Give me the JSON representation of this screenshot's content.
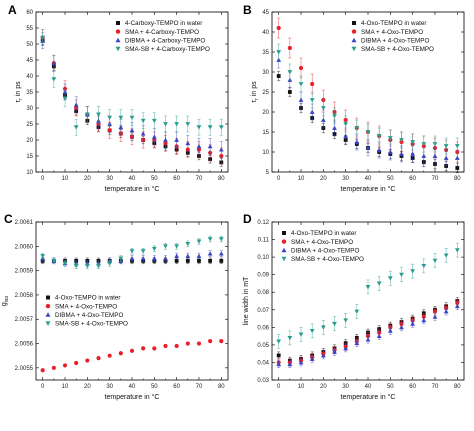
{
  "colors": {
    "water": "#111111",
    "sma": "#e8202a",
    "dibma": "#3a44c2",
    "smasb": "#2a9d8f"
  },
  "chart_data": [
    {
      "id": "A",
      "letter": "A",
      "type": "scatter",
      "xlabel": "temperature in °C",
      "ylabel": "τr in ps",
      "ylabel_main": "τ",
      "ylabel_sub": "r",
      "ylabel_rest": " in ps",
      "xlim": [
        -3,
        83
      ],
      "ylim": [
        10,
        60
      ],
      "xticks": [
        0,
        10,
        20,
        30,
        40,
        50,
        60,
        70,
        80
      ],
      "yticks": [
        10,
        15,
        20,
        25,
        30,
        35,
        40,
        45,
        50,
        55,
        60
      ],
      "ytick_decimals": 0,
      "legend_position": "top-right",
      "x": [
        0,
        5,
        10,
        15,
        20,
        25,
        30,
        35,
        40,
        45,
        50,
        55,
        60,
        65,
        70,
        75,
        80
      ],
      "series": [
        {
          "name": "4-Carboxy-TEMPO in water",
          "marker": "square",
          "color_key": "water",
          "values": [
            51,
            43,
            34,
            29,
            26,
            24,
            23,
            22,
            21,
            20,
            19,
            18,
            17,
            16,
            15,
            14,
            13
          ],
          "err": 1.2
        },
        {
          "name": "SMA + 4-Carboxy-TEMPO",
          "marker": "circle",
          "color_key": "sma",
          "values": [
            52,
            44,
            36,
            30,
            28,
            25,
            23,
            22,
            21,
            20,
            20,
            19,
            18,
            17,
            17,
            16,
            15
          ],
          "err": 2.5
        },
        {
          "name": "DIBMA + 4-Carboxy-TEMPO",
          "marker": "triangle-up",
          "color_key": "dibma",
          "values": [
            51,
            44,
            35,
            31,
            28,
            26,
            25,
            24,
            23,
            22,
            21,
            20,
            20,
            19,
            18,
            18,
            17
          ],
          "err": 2.5
        },
        {
          "name": "SMA-SB + 4-Carboxy-TEMPO",
          "marker": "triangle-down",
          "color_key": "smasb",
          "values": [
            52,
            39,
            33,
            24,
            28,
            28,
            27,
            27,
            27,
            26,
            26,
            25,
            25,
            25,
            24,
            24,
            24
          ],
          "err": 2.5
        }
      ]
    },
    {
      "id": "B",
      "letter": "B",
      "type": "scatter",
      "xlabel": "temperature in °C",
      "ylabel": "τr in ps",
      "ylabel_main": "τ",
      "ylabel_sub": "r",
      "ylabel_rest": " in ps",
      "xlim": [
        -3,
        83
      ],
      "ylim": [
        5,
        45
      ],
      "xticks": [
        0,
        10,
        20,
        30,
        40,
        50,
        60,
        70,
        80
      ],
      "yticks": [
        5,
        10,
        15,
        20,
        25,
        30,
        35,
        40,
        45
      ],
      "ytick_decimals": 0,
      "legend_position": "top-right",
      "x": [
        0,
        5,
        10,
        15,
        20,
        25,
        30,
        35,
        40,
        45,
        50,
        55,
        60,
        65,
        70,
        75,
        80
      ],
      "series": [
        {
          "name": "4-Oxo-TEMPO in water",
          "marker": "square",
          "color_key": "water",
          "values": [
            29,
            25,
            21,
            18.5,
            16,
            14.5,
            13,
            12,
            11,
            10,
            9.5,
            9,
            8.5,
            7.5,
            7,
            6.5,
            6
          ],
          "err": 1.2
        },
        {
          "name": "SMA + 4-Oxo-TEMPO",
          "marker": "circle",
          "color_key": "sma",
          "values": [
            41,
            36,
            31,
            27,
            23,
            20,
            18,
            16,
            15,
            14,
            13,
            12.5,
            12,
            11.5,
            11,
            10.5,
            10
          ],
          "err": 2.5
        },
        {
          "name": "DIBMA + 4-Oxo-TEMPO",
          "marker": "triangle-up",
          "color_key": "dibma",
          "values": [
            33,
            28,
            23,
            20,
            18,
            16,
            14,
            12.5,
            11,
            10.5,
            10,
            9.5,
            9.5,
            9,
            9,
            8.5,
            8.5
          ],
          "err": 2
        },
        {
          "name": "SMA-SB + 4-Oxo-TEMPO",
          "marker": "triangle-down",
          "color_key": "smasb",
          "values": [
            35,
            30,
            27,
            23,
            21,
            19,
            17,
            16,
            15,
            14,
            13.5,
            13,
            12.5,
            12,
            12,
            11.5,
            11.5
          ],
          "err": 2
        }
      ]
    },
    {
      "id": "C",
      "letter": "C",
      "type": "scatter",
      "xlabel": "temperature in °C",
      "ylabel": "giso",
      "ylabel_main": "g",
      "ylabel_sub": "iso",
      "ylabel_rest": "",
      "xlim": [
        -3,
        83
      ],
      "ylim": [
        2.00545,
        2.0061
      ],
      "xticks": [
        0,
        10,
        20,
        30,
        40,
        50,
        60,
        70,
        80
      ],
      "yticks": [
        2.0055,
        2.0056,
        2.0057,
        2.0058,
        2.0059,
        2.006,
        2.0061
      ],
      "ytick_decimals": 4,
      "legend_position": "center-left",
      "x": [
        0,
        5,
        10,
        15,
        20,
        25,
        30,
        35,
        40,
        45,
        50,
        55,
        60,
        65,
        70,
        75,
        80
      ],
      "series": [
        {
          "name": "4-Oxo-TEMPO in water",
          "marker": "square",
          "color_key": "water",
          "values": [
            2.00594,
            2.00594,
            2.00594,
            2.00594,
            2.00594,
            2.00594,
            2.00594,
            2.00594,
            2.00594,
            2.00594,
            2.00594,
            2.00594,
            2.00594,
            2.00594,
            2.00594,
            2.00594,
            2.00594
          ],
          "err": 1.2e-05
        },
        {
          "name": "SMA + 4-Oxo-TEMPO",
          "marker": "circle",
          "color_key": "sma",
          "values": [
            2.00549,
            2.0055,
            2.00551,
            2.00552,
            2.00553,
            2.00554,
            2.00555,
            2.00556,
            2.00557,
            2.00558,
            2.00558,
            2.00559,
            2.00559,
            2.0056,
            2.0056,
            2.00561,
            2.00561
          ],
          "err": 5e-06
        },
        {
          "name": "DIBMA + 4-Oxo-TEMPO",
          "marker": "triangle-up",
          "color_key": "dibma",
          "values": [
            2.00595,
            2.00594,
            2.00593,
            2.00593,
            2.00593,
            2.00593,
            2.00594,
            2.00594,
            2.00595,
            2.00595,
            2.00595,
            2.00595,
            2.00596,
            2.00596,
            2.00596,
            2.00597,
            2.00597
          ],
          "err": 1.2e-05
        },
        {
          "name": "SMA-SB + 4-Oxo-TEMPO",
          "marker": "triangle-down",
          "color_key": "smasb",
          "values": [
            2.00596,
            2.00594,
            2.00593,
            2.00592,
            2.00592,
            2.00592,
            2.00593,
            2.00595,
            2.00598,
            2.00598,
            2.00599,
            2.006,
            2.006,
            2.00601,
            2.00602,
            2.00603,
            2.00603
          ],
          "err": 1.2e-05
        }
      ]
    },
    {
      "id": "D",
      "letter": "D",
      "type": "scatter",
      "xlabel": "temperature in °C",
      "ylabel": "line width in mT",
      "ylabel_main": "line width in mT",
      "ylabel_sub": "",
      "ylabel_rest": "",
      "xlim": [
        -3,
        83
      ],
      "ylim": [
        0.03,
        0.12
      ],
      "xticks": [
        0,
        10,
        20,
        30,
        40,
        50,
        60,
        70,
        80
      ],
      "yticks": [
        0.03,
        0.04,
        0.05,
        0.06,
        0.07,
        0.08,
        0.09,
        0.1,
        0.11,
        0.12
      ],
      "ytick_decimals": 2,
      "legend_position": "top-left",
      "x": [
        0,
        5,
        10,
        15,
        20,
        25,
        30,
        35,
        40,
        45,
        50,
        55,
        60,
        65,
        70,
        75,
        80
      ],
      "series": [
        {
          "name": "4-Oxo-TEMPO in water",
          "marker": "square",
          "color_key": "water",
          "values": [
            0.044,
            0.041,
            0.042,
            0.044,
            0.046,
            0.048,
            0.051,
            0.054,
            0.057,
            0.059,
            0.061,
            0.063,
            0.065,
            0.068,
            0.07,
            0.072,
            0.075
          ],
          "err": 0.002
        },
        {
          "name": "SMA + 4-Oxo-TEMPO",
          "marker": "circle",
          "color_key": "sma",
          "values": [
            0.04,
            0.04,
            0.041,
            0.043,
            0.045,
            0.047,
            0.049,
            0.052,
            0.055,
            0.057,
            0.06,
            0.062,
            0.064,
            0.066,
            0.069,
            0.071,
            0.074
          ],
          "err": 0.002
        },
        {
          "name": "DIBMA + 4-Oxo-TEMPO",
          "marker": "triangle-up",
          "color_key": "dibma",
          "values": [
            0.039,
            0.039,
            0.04,
            0.042,
            0.044,
            0.046,
            0.048,
            0.051,
            0.053,
            0.055,
            0.058,
            0.06,
            0.062,
            0.064,
            0.066,
            0.069,
            0.072
          ],
          "err": 0.002
        },
        {
          "name": "SMA-SB + 4-Oxo-TEMPO",
          "marker": "triangle-down",
          "color_key": "smasb",
          "values": [
            0.052,
            0.054,
            0.056,
            0.058,
            0.06,
            0.062,
            0.064,
            0.069,
            0.083,
            0.085,
            0.088,
            0.09,
            0.092,
            0.095,
            0.098,
            0.101,
            0.104
          ],
          "err": 0.004
        }
      ]
    }
  ]
}
